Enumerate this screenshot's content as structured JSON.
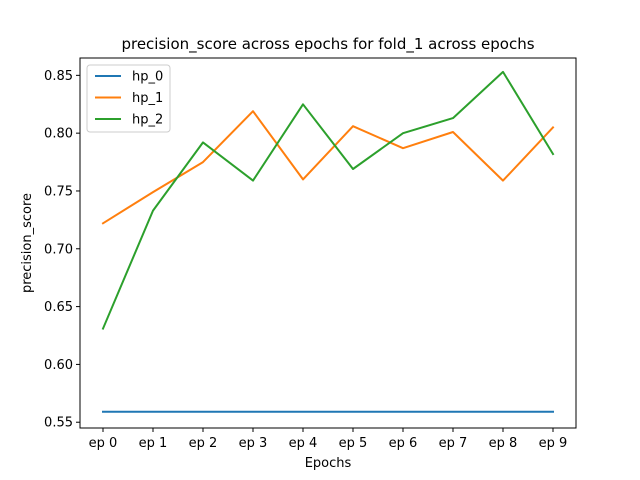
{
  "chart_data": {
    "type": "line",
    "title": "precision_score across epochs for fold_1 across epochs",
    "xlabel": "Epochs",
    "ylabel": "precision_score",
    "categories": [
      "ep 0",
      "ep 1",
      "ep 2",
      "ep 3",
      "ep 4",
      "ep 5",
      "ep 6",
      "ep 7",
      "ep 8",
      "ep 9"
    ],
    "ylim": [
      0.545,
      0.865
    ],
    "yticks": [
      0.55,
      0.6,
      0.65,
      0.7,
      0.75,
      0.8,
      0.85
    ],
    "ytick_labels": [
      "0.55",
      "0.60",
      "0.65",
      "0.70",
      "0.75",
      "0.80",
      "0.85"
    ],
    "grid": false,
    "legend_position": "top-left",
    "series": [
      {
        "name": "hp_0",
        "color": "#1f77b4",
        "values": [
          0.559,
          0.559,
          0.559,
          0.559,
          0.559,
          0.559,
          0.559,
          0.559,
          0.559,
          0.559
        ]
      },
      {
        "name": "hp_1",
        "color": "#ff7f0e",
        "values": [
          0.722,
          0.749,
          0.775,
          0.819,
          0.76,
          0.806,
          0.787,
          0.801,
          0.759,
          0.805
        ]
      },
      {
        "name": "hp_2",
        "color": "#2ca02c",
        "values": [
          0.631,
          0.733,
          0.792,
          0.759,
          0.825,
          0.769,
          0.8,
          0.813,
          0.853,
          0.782
        ]
      }
    ]
  }
}
